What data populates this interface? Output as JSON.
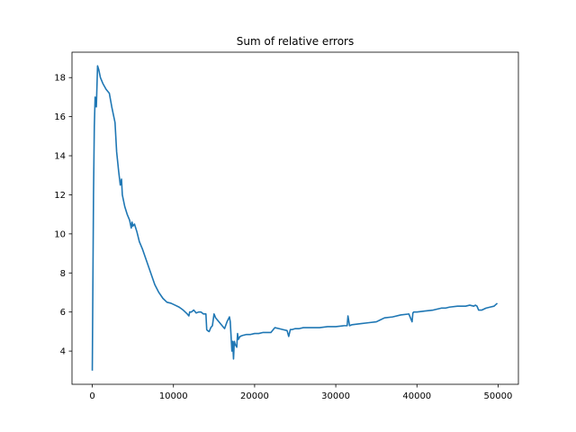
{
  "chart_data": {
    "type": "line",
    "title": "Sum of relative errors",
    "xlabel": "",
    "ylabel": "",
    "xlim": [
      -2500,
      52500
    ],
    "ylim": [
      2.3,
      19.3
    ],
    "x_ticks": [
      0,
      10000,
      20000,
      30000,
      40000,
      50000
    ],
    "y_ticks": [
      4,
      6,
      8,
      10,
      12,
      14,
      16,
      18
    ],
    "grid": false,
    "line_color": "#1f77b4",
    "series": [
      {
        "x": [
          0,
          150,
          250,
          350,
          420,
          500,
          550,
          650,
          800,
          1000,
          1300,
          1700,
          2100,
          2400,
          2600,
          2800,
          3000,
          3050,
          3250,
          3450,
          3600,
          3700,
          3800,
          4000,
          4300,
          4600,
          4800,
          4900,
          5000,
          5200,
          5500,
          5800,
          6200,
          6700,
          7200,
          7700,
          8200,
          8700,
          9200,
          9700,
          10200,
          10700,
          11200,
          11700,
          11900,
          12000,
          12200,
          12500,
          12800,
          13100,
          13400,
          13700,
          14000,
          14100,
          14200,
          14400,
          14600,
          14800,
          15000,
          15200,
          15400,
          15600,
          15800,
          16000,
          16300,
          16600,
          16900,
          17000,
          17200,
          17300,
          17400,
          17500,
          17600,
          17800,
          17900,
          18000,
          18200,
          18500,
          19000,
          19500,
          20000,
          20500,
          21000,
          21500,
          22000,
          22500,
          23000,
          23500,
          24000,
          24200,
          24400,
          24600,
          25000,
          25500,
          26000,
          27000,
          28000,
          29000,
          30000,
          31000,
          31400,
          31500,
          31700,
          32000,
          33000,
          34000,
          35000,
          35500,
          36000,
          37000,
          38000,
          39000,
          39400,
          39500,
          39600,
          40000,
          41000,
          42000,
          43000,
          43500,
          44000,
          45000,
          46000,
          46500,
          47000,
          47200,
          47400,
          47600,
          48000,
          48500,
          49000,
          49500,
          49900
        ],
        "y": [
          3.0,
          12.0,
          15.5,
          17.0,
          16.8,
          16.5,
          17.2,
          18.6,
          18.4,
          18.0,
          17.7,
          17.4,
          17.2,
          16.5,
          16.1,
          15.7,
          14.2,
          14.0,
          13.2,
          12.5,
          12.8,
          12.0,
          11.8,
          11.4,
          11.0,
          10.7,
          10.3,
          10.6,
          10.4,
          10.5,
          10.1,
          9.6,
          9.2,
          8.6,
          8.0,
          7.4,
          7.0,
          6.7,
          6.5,
          6.45,
          6.35,
          6.25,
          6.1,
          5.9,
          5.8,
          6.0,
          6.0,
          6.1,
          5.95,
          6.0,
          6.0,
          5.9,
          5.9,
          5.1,
          5.05,
          5.0,
          5.2,
          5.3,
          5.9,
          5.7,
          5.6,
          5.5,
          5.4,
          5.3,
          5.15,
          5.5,
          5.75,
          5.5,
          4.0,
          4.5,
          3.6,
          4.5,
          4.35,
          4.2,
          4.9,
          4.6,
          4.75,
          4.8,
          4.85,
          4.85,
          4.9,
          4.9,
          4.95,
          4.95,
          4.95,
          5.2,
          5.15,
          5.1,
          5.05,
          4.75,
          5.1,
          5.1,
          5.15,
          5.15,
          5.2,
          5.2,
          5.2,
          5.25,
          5.25,
          5.3,
          5.3,
          5.8,
          5.3,
          5.35,
          5.4,
          5.45,
          5.5,
          5.6,
          5.7,
          5.75,
          5.85,
          5.9,
          5.5,
          5.95,
          6.0,
          6.0,
          6.05,
          6.1,
          6.2,
          6.2,
          6.25,
          6.3,
          6.3,
          6.35,
          6.3,
          6.35,
          6.3,
          6.1,
          6.1,
          6.2,
          6.25,
          6.3,
          6.45
        ]
      }
    ]
  }
}
